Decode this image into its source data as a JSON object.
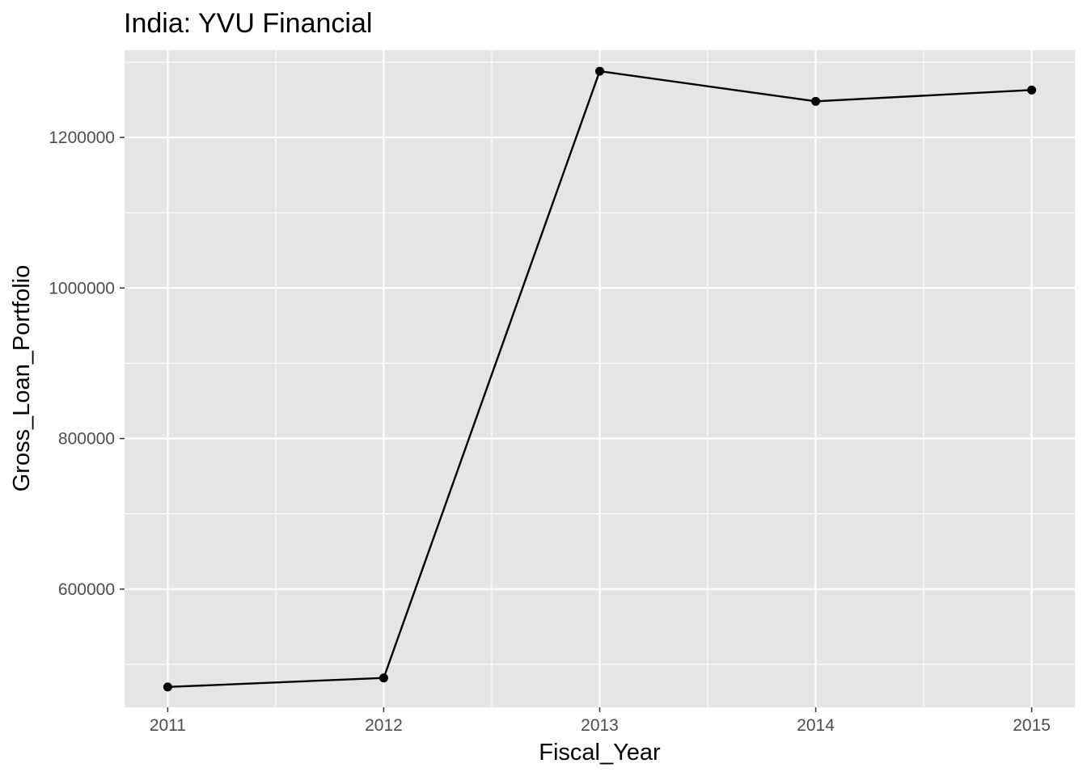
{
  "chart_data": {
    "type": "line",
    "title": "India:  YVU Financial",
    "xlabel": "Fiscal_Year",
    "ylabel": "Gross_Loan_Portfolio",
    "x": [
      2011,
      2012,
      2013,
      2014,
      2015
    ],
    "x_tick_labels": [
      "2011",
      "2012",
      "2013",
      "2014",
      "2015"
    ],
    "y_ticks": [
      600000,
      800000,
      1000000,
      1200000
    ],
    "y_tick_labels": [
      "600000",
      "800000",
      "1000000",
      "1200000"
    ],
    "series": [
      {
        "values": [
          470000,
          482000,
          1288000,
          1248000,
          1263000
        ]
      }
    ],
    "ylim": [
      443000,
      1316000
    ],
    "xlim": [
      2010.8,
      2015.2
    ],
    "grid": true,
    "legend": "none",
    "colors": {
      "panel": "#e5e5e5",
      "grid": "#ffffff",
      "line": "#000000",
      "ticks": "#4d4d4d"
    }
  }
}
